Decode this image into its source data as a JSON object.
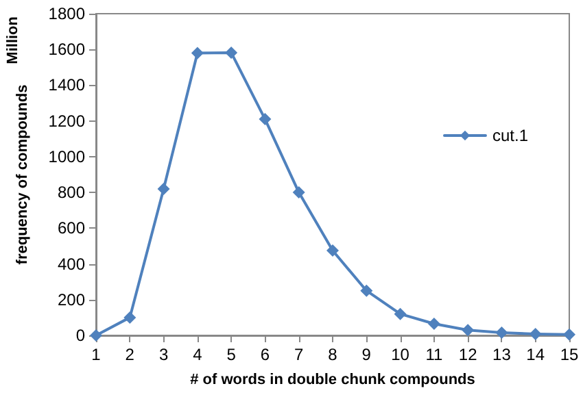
{
  "chart_data": {
    "type": "line",
    "xlabel": "# of words in double chunk compounds",
    "ylabel": "frequency of compounds",
    "annotations": [
      "Million"
    ],
    "x": [
      1,
      2,
      3,
      4,
      5,
      6,
      7,
      8,
      9,
      10,
      11,
      12,
      13,
      14,
      15
    ],
    "series": [
      {
        "name": "cut.1",
        "color": "#4f81bd",
        "values": [
          0,
          100,
          820,
          1580,
          1582,
          1210,
          800,
          475,
          250,
          120,
          65,
          30,
          15,
          8,
          5
        ]
      }
    ],
    "xlim": [
      1,
      15
    ],
    "xticks": [
      1,
      2,
      3,
      4,
      5,
      6,
      7,
      8,
      9,
      10,
      11,
      12,
      13,
      14,
      15
    ],
    "ylim": [
      0,
      1800
    ],
    "yticks": [
      0,
      200,
      400,
      600,
      800,
      1000,
      1200,
      1400,
      1600,
      1800
    ],
    "grid": false,
    "legend": "top right",
    "marker": "diamond",
    "line_style": "solid"
  }
}
